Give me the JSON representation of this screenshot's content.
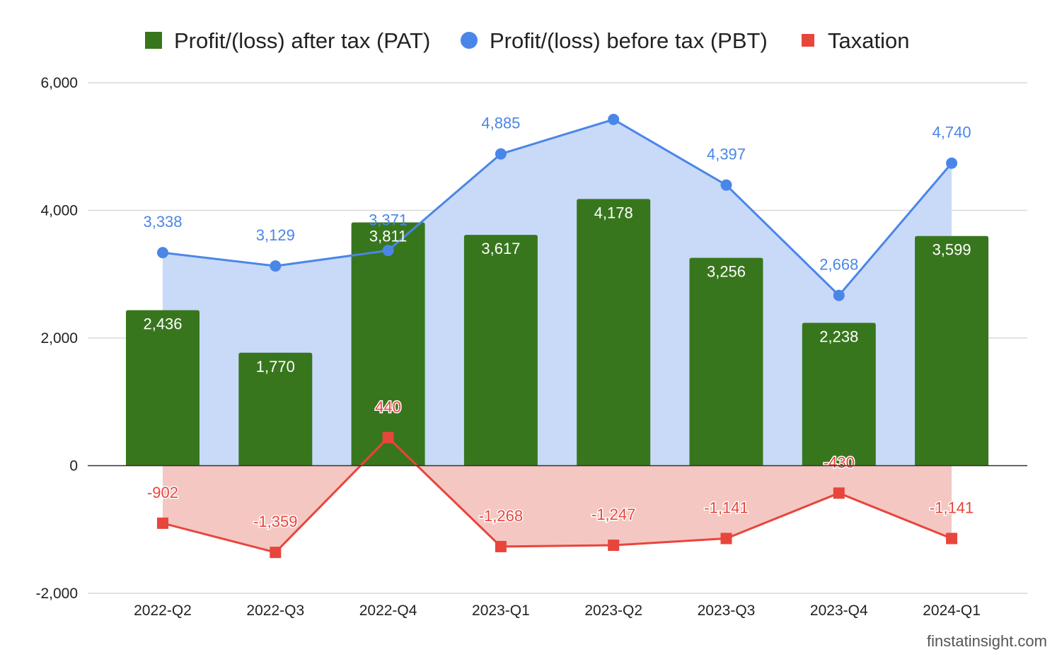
{
  "chart_data": {
    "type": "bar",
    "categories": [
      "2022-Q2",
      "2022-Q3",
      "2022-Q4",
      "2023-Q1",
      "2023-Q2",
      "2023-Q3",
      "2023-Q4",
      "2024-Q1"
    ],
    "series": [
      {
        "name": "Profit/(loss) after tax (PAT)",
        "type": "bar",
        "color": "#38761d",
        "values": [
          2436,
          1770,
          3811,
          3617,
          4178,
          3256,
          2238,
          3599
        ],
        "labels": [
          "2,436",
          "1,770",
          "3,811",
          "3,617",
          "4,178",
          "3,256",
          "2,238",
          "3,599"
        ]
      },
      {
        "name": "Profit/(loss) before tax (PBT)",
        "type": "area-line",
        "color": "#4a86e8",
        "fill": "#c9daf8",
        "values": [
          3338,
          3129,
          3371,
          4885,
          5425,
          4397,
          2668,
          4740
        ],
        "labels": [
          "3,338",
          "3,129",
          "3,371",
          "4,885",
          "",
          "4,397",
          "2,668",
          "4,740"
        ]
      },
      {
        "name": "Taxation",
        "type": "area-line",
        "color": "#e8453c",
        "fill": "#f4c7c3",
        "values": [
          -902,
          -1359,
          440,
          -1268,
          -1247,
          -1141,
          -430,
          -1141
        ],
        "labels": [
          "-902",
          "-1,359",
          "440",
          "-1,268",
          "-1,247",
          "-1,141",
          "-430",
          "-1,141"
        ]
      }
    ],
    "ylim": [
      -2000,
      6000
    ],
    "yticks": [
      -2000,
      0,
      2000,
      4000,
      6000
    ],
    "ytick_labels": [
      "-2,000",
      "0",
      "2,000",
      "4,000",
      "6,000"
    ],
    "grid": true,
    "legend": "top"
  },
  "watermark": "finstatinsight.com"
}
